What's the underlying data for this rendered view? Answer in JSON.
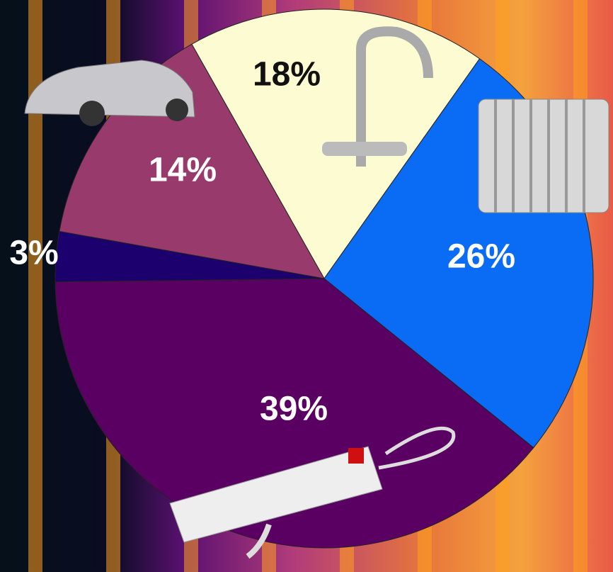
{
  "chart_data": {
    "type": "pie",
    "values": [
      18,
      26,
      39,
      3,
      14
    ],
    "value_labels": [
      "18%",
      "26%",
      "39%",
      "3%",
      "14%"
    ],
    "colors": [
      "#fdfbd2",
      "#0a6cf4",
      "#5a0062",
      "#1c006e",
      "#993a6c"
    ],
    "label_colors": [
      "#111111",
      "#ffffff",
      "#ffffff",
      "#ffffff",
      "#ffffff"
    ]
  }
}
